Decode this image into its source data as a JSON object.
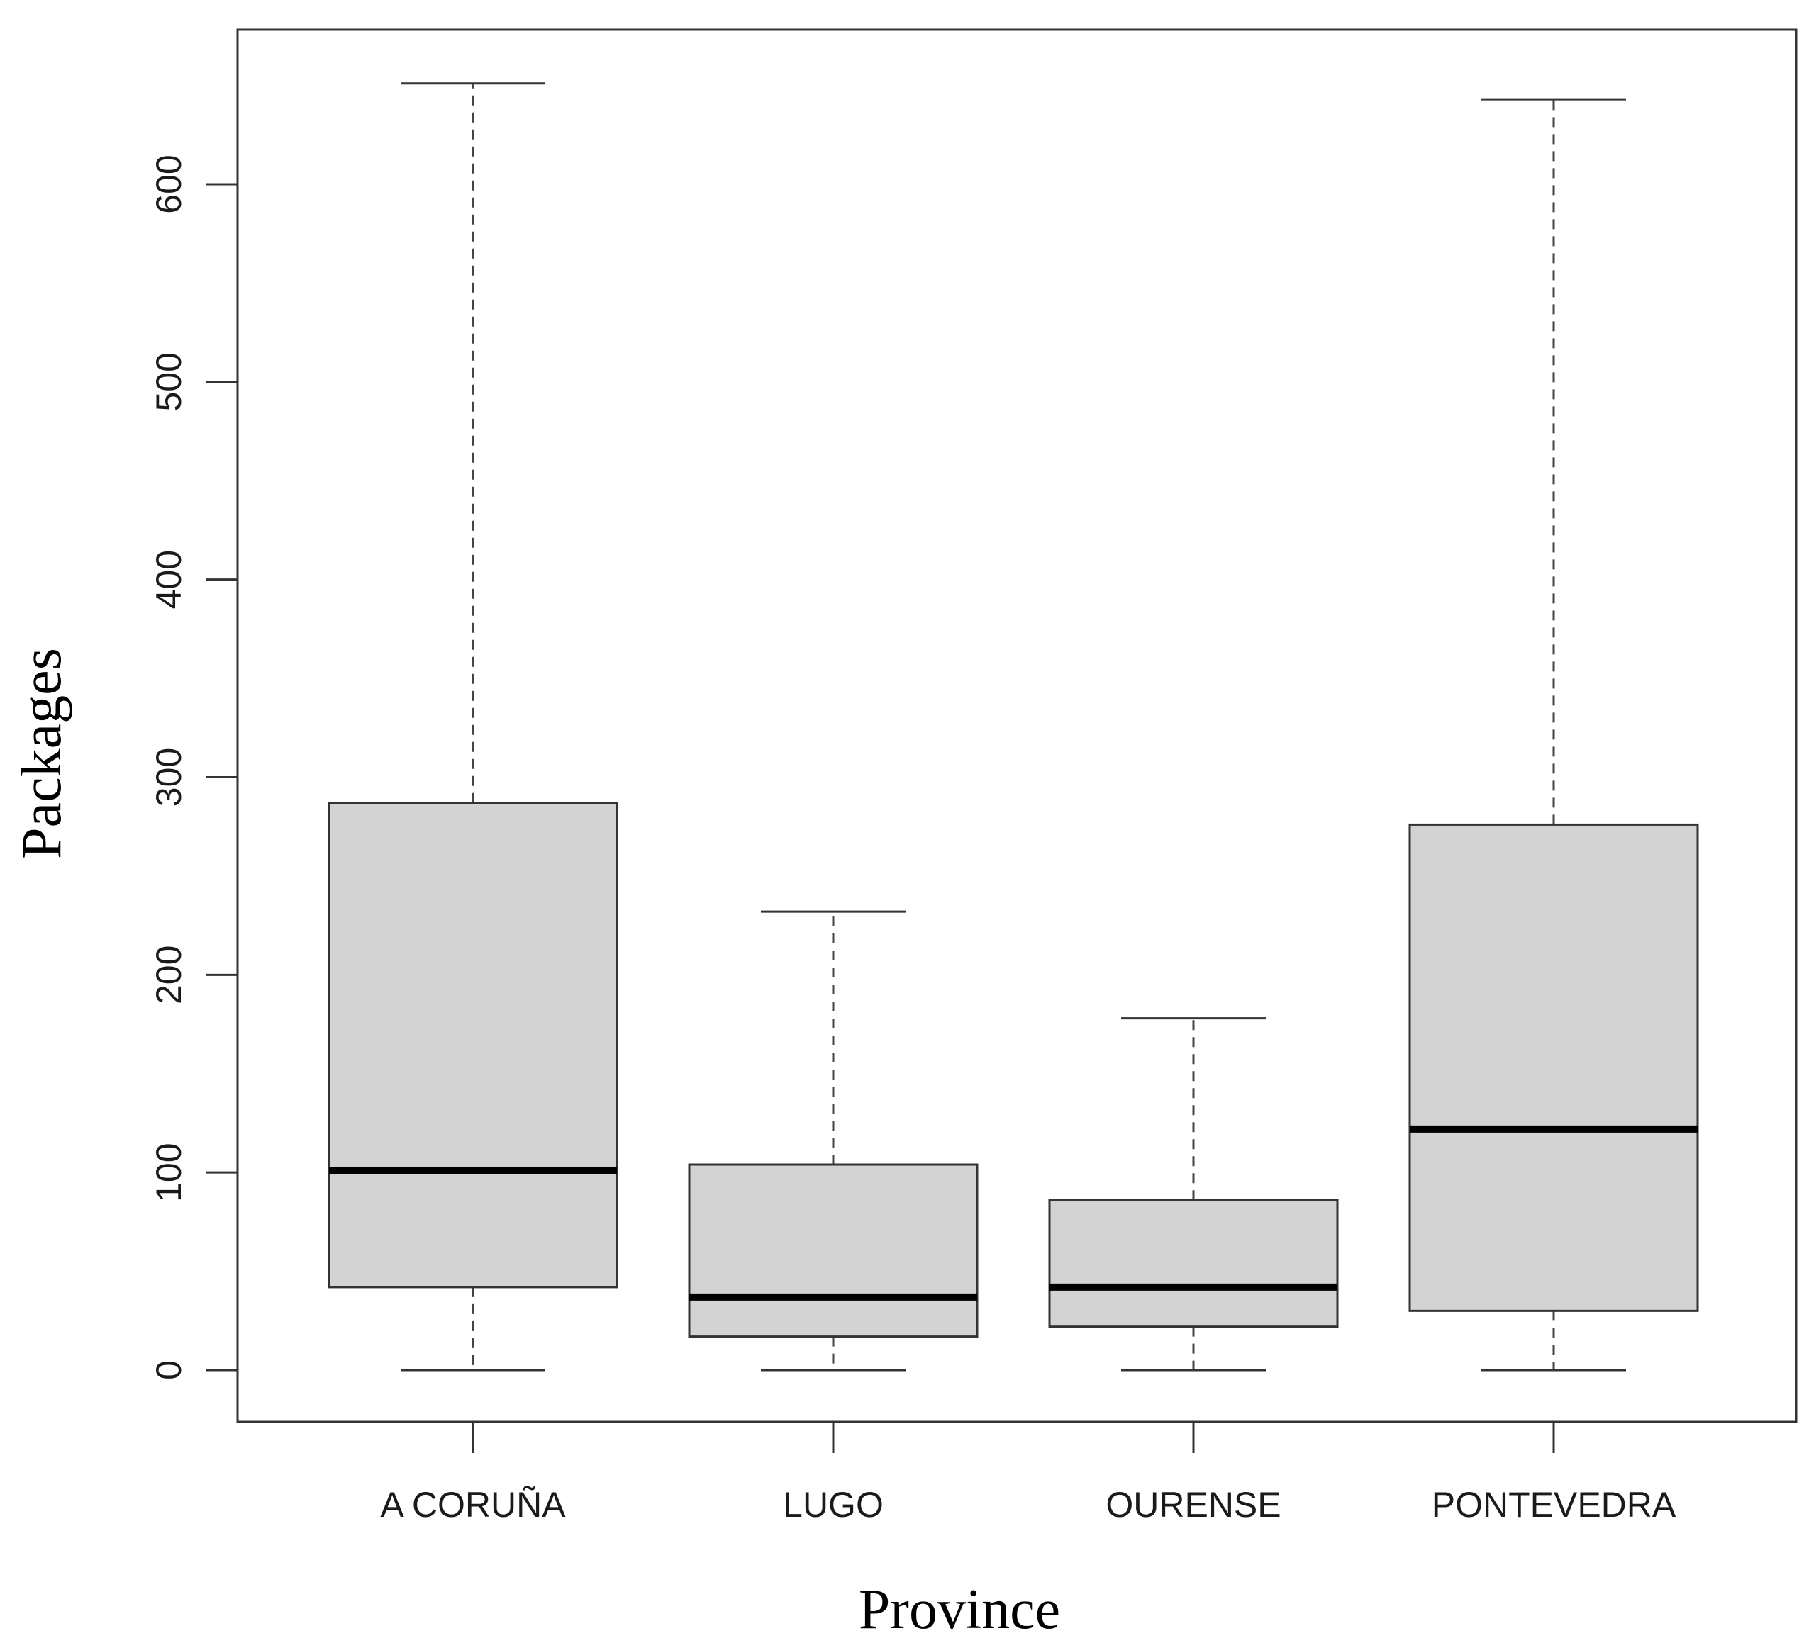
{
  "chart_data": {
    "type": "boxplot",
    "title": "",
    "xlabel": "Province",
    "ylabel": "Packages",
    "ylim": [
      -25,
      675
    ],
    "yticks": [
      0,
      100,
      200,
      300,
      400,
      500,
      600
    ],
    "ytick_labels": [
      "0",
      "100",
      "200",
      "300",
      "400",
      "500",
      "600"
    ],
    "box_fill": "#d3d3d3",
    "categories": [
      "A CORUÑA",
      "LUGO",
      "OURENSE",
      "PONTEVEDRA"
    ],
    "boxes": [
      {
        "name": "A CORUÑA",
        "min": 0,
        "q1": 42,
        "median": 101,
        "q3": 287,
        "max": 651
      },
      {
        "name": "LUGO",
        "min": 0,
        "q1": 17,
        "median": 37,
        "q3": 104,
        "max": 232
      },
      {
        "name": "OURENSE",
        "min": 0,
        "q1": 22,
        "median": 42,
        "q3": 86,
        "max": 178
      },
      {
        "name": "PONTEVEDRA",
        "min": 0,
        "q1": 30,
        "median": 122,
        "q3": 276,
        "max": 643
      }
    ]
  }
}
